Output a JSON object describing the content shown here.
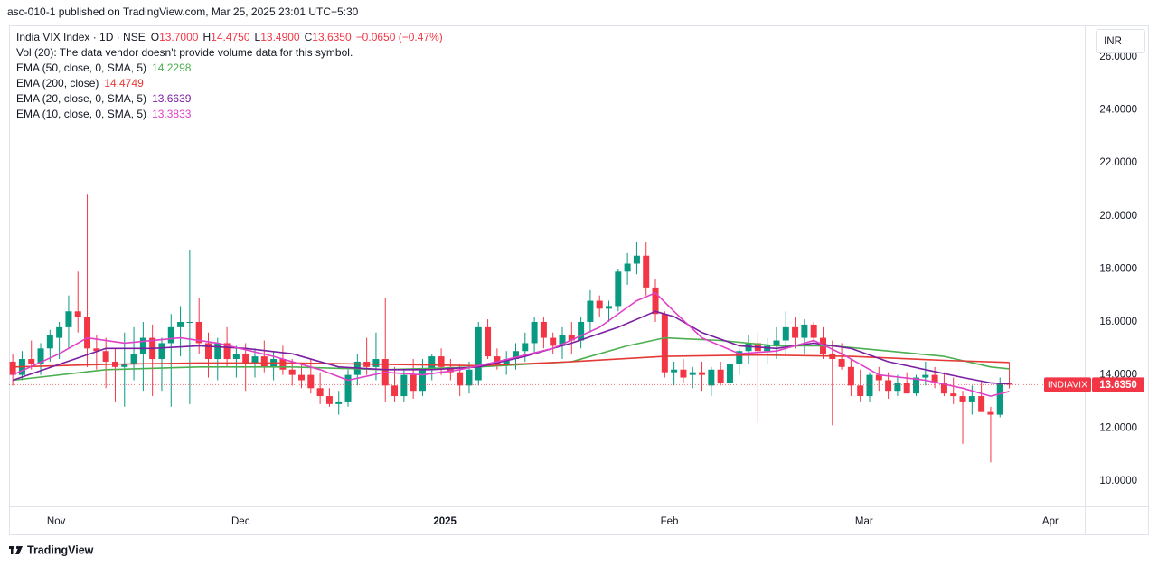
{
  "header": {
    "published": "asc-010-1 published on TradingView.com, Mar 25, 2025 23:01 UTC+5:30",
    "ohlc": [
      {
        "key": "O",
        "text": "13.7000"
      },
      {
        "key": "H",
        "text": "14.4750"
      },
      {
        "key": "L",
        "text": "13.4900"
      },
      {
        "key": "C",
        "text": "13.6350"
      }
    ],
    "change": "−0.0650 (−0.47%)",
    "volume_note": "Vol (20): The data vendor doesn't provide volume data for this symbol."
  },
  "footer": {
    "brand": "TradingView"
  },
  "chart_data": {
    "type": "candlestick",
    "title": "India VIX Index · 1D · NSE",
    "currency": "INR",
    "up_color": "#089981",
    "down_color": "#f23645",
    "grid": false,
    "open": [
      14.5,
      14.0,
      14.6,
      14.4,
      15.0,
      15.4,
      15.8,
      16.4,
      16.2,
      15.0,
      14.9,
      14.5,
      14.3,
      14.4,
      14.8,
      15.4,
      14.6,
      15.2,
      15.8,
      16.0,
      16.0,
      15.2,
      14.6,
      15.2,
      14.6,
      14.8,
      14.4,
      14.7,
      14.3,
      14.6,
      14.2,
      14.0,
      14.0,
      13.5,
      13.2,
      12.9,
      13.0,
      14.0,
      14.5,
      14.3,
      14.6,
      13.6,
      13.2,
      14.0,
      13.4,
      14.2,
      14.7,
      14.3,
      14.1,
      13.6,
      13.8,
      15.8,
      14.7,
      14.4,
      14.6,
      14.9,
      15.2,
      16.0,
      15.4,
      15.1,
      15.5,
      15.3,
      16.0,
      16.8,
      16.5,
      16.6,
      17.9,
      18.2,
      18.5,
      17.3,
      16.3,
      14.1,
      14.2,
      14.0,
      14.1,
      13.6,
      14.2,
      13.7,
      14.4,
      14.9,
      15.2,
      14.9,
      15.1,
      15.3,
      15.8,
      15.4,
      15.9,
      15.4,
      14.8,
      14.6,
      14.3,
      13.6,
      13.2,
      14.0,
      13.8,
      13.4,
      13.7,
      13.3,
      13.9,
      14.0,
      13.7,
      13.3,
      13.2,
      13.0,
      13.2,
      12.6,
      12.5,
      13.7
    ],
    "high": [
      14.8,
      14.9,
      15.3,
      15.2,
      15.7,
      16.0,
      17.0,
      17.9,
      20.8,
      15.5,
      15.4,
      15.0,
      15.6,
      15.8,
      16.0,
      15.9,
      15.4,
      16.3,
      16.6,
      18.7,
      16.9,
      15.6,
      15.4,
      15.8,
      15.1,
      15.2,
      15.0,
      15.3,
      14.9,
      15.1,
      14.6,
      14.4,
      14.6,
      14.1,
      13.5,
      13.4,
      14.2,
      14.8,
      15.4,
      15.6,
      16.9,
      14.3,
      14.2,
      14.6,
      14.6,
      14.8,
      15.0,
      14.6,
      14.4,
      14.5,
      16.0,
      16.1,
      15.0,
      14.9,
      15.2,
      15.6,
      16.2,
      16.2,
      15.6,
      15.8,
      16.0,
      16.2,
      17.2,
      17.0,
      16.8,
      18.0,
      18.6,
      19.0,
      19.0,
      17.6,
      16.4,
      14.5,
      14.6,
      14.3,
      14.5,
      14.3,
      14.5,
      14.7,
      15.0,
      15.5,
      15.6,
      15.4,
      15.8,
      16.4,
      16.2,
      16.1,
      16.0,
      15.8,
      15.3,
      15.2,
      14.6,
      14.2,
      14.1,
      14.3,
      14.1,
      14.0,
      14.1,
      14.0,
      14.5,
      14.3,
      14.1,
      13.9,
      13.4,
      13.6,
      13.8,
      12.8,
      13.9,
      14.475
    ],
    "low": [
      13.6,
      13.8,
      14.2,
      14.0,
      14.5,
      14.6,
      15.0,
      15.6,
      14.3,
      14.2,
      13.5,
      13.0,
      12.8,
      13.8,
      13.4,
      13.2,
      13.4,
      12.8,
      14.7,
      12.9,
      14.8,
      13.9,
      13.8,
      14.3,
      13.9,
      13.4,
      13.9,
      14.1,
      13.8,
      14.0,
      13.6,
      13.5,
      13.3,
      12.9,
      12.8,
      12.5,
      12.8,
      13.6,
      14.0,
      13.8,
      13.0,
      13.0,
      13.0,
      13.1,
      13.2,
      13.8,
      14.0,
      13.8,
      13.2,
      13.3,
      13.6,
      14.6,
      14.2,
      14.0,
      14.2,
      14.5,
      14.8,
      15.0,
      14.8,
      14.6,
      14.8,
      15.0,
      15.6,
      16.2,
      16.0,
      16.4,
      17.4,
      17.8,
      17.0,
      16.0,
      13.9,
      13.6,
      13.7,
      13.5,
      13.4,
      13.2,
      13.6,
      13.4,
      14.0,
      14.4,
      12.2,
      14.4,
      14.6,
      14.8,
      15.0,
      14.8,
      15.2,
      14.6,
      12.1,
      14.2,
      13.2,
      13.0,
      13.0,
      13.4,
      13.1,
      13.2,
      13.3,
      13.2,
      13.6,
      13.5,
      13.2,
      12.9,
      11.4,
      12.5,
      12.6,
      10.7,
      12.4,
      13.49
    ],
    "close": [
      14.0,
      14.6,
      14.4,
      15.0,
      15.5,
      15.8,
      16.4,
      16.2,
      15.0,
      14.9,
      14.5,
      14.3,
      14.4,
      14.8,
      15.4,
      14.6,
      15.2,
      15.8,
      16.0,
      16.0,
      15.2,
      14.6,
      15.2,
      14.6,
      14.8,
      14.4,
      14.7,
      14.3,
      14.6,
      14.2,
      14.0,
      13.8,
      13.5,
      13.2,
      12.9,
      13.0,
      14.0,
      14.5,
      14.3,
      14.6,
      13.6,
      13.2,
      14.0,
      13.4,
      14.2,
      14.7,
      14.3,
      14.1,
      13.6,
      14.2,
      15.8,
      14.7,
      14.4,
      14.6,
      14.9,
      15.2,
      16.0,
      15.4,
      15.1,
      15.5,
      15.3,
      16.0,
      16.8,
      16.5,
      16.6,
      17.9,
      18.2,
      18.5,
      17.3,
      16.3,
      14.1,
      14.2,
      13.9,
      14.1,
      14.0,
      14.2,
      13.7,
      14.4,
      14.9,
      15.2,
      14.9,
      15.1,
      15.3,
      15.8,
      15.4,
      15.9,
      15.4,
      14.8,
      14.6,
      14.3,
      13.6,
      13.2,
      14.0,
      13.8,
      13.4,
      13.7,
      13.3,
      13.9,
      14.0,
      13.7,
      13.3,
      13.2,
      13.0,
      13.2,
      12.6,
      12.5,
      13.7,
      13.635
    ],
    "series": [
      {
        "name": "EMA (50, close, 0, SMA, 5)",
        "color": "#4caf50",
        "last_label": "14.2298",
        "x": [
          0,
          10,
          20,
          30,
          40,
          50,
          60,
          66,
          70,
          76,
          82,
          88,
          94,
          100,
          105,
          107
        ],
        "values": [
          13.8,
          14.2,
          14.3,
          14.3,
          14.2,
          14.3,
          14.5,
          15.1,
          15.4,
          15.3,
          15.1,
          15.1,
          14.9,
          14.7,
          14.3,
          14.23
        ]
      },
      {
        "name": "EMA (200, close)",
        "color": "#e53935",
        "last_label": "14.4749",
        "x": [
          0,
          10,
          20,
          30,
          40,
          50,
          60,
          70,
          80,
          90,
          100,
          107
        ],
        "values": [
          14.3,
          14.4,
          14.45,
          14.45,
          14.4,
          14.35,
          14.5,
          14.7,
          14.75,
          14.7,
          14.55,
          14.47
        ]
      },
      {
        "name": "EMA (20, close, 0, SMA, 5)",
        "color": "#7b1fa2",
        "last_label": "13.6639",
        "x": [
          0,
          5,
          10,
          15,
          20,
          25,
          30,
          35,
          40,
          45,
          50,
          55,
          60,
          65,
          69,
          71,
          74,
          78,
          82,
          86,
          90,
          94,
          98,
          102,
          105,
          107
        ],
        "values": [
          13.8,
          14.4,
          15.0,
          15.0,
          15.1,
          15.0,
          14.8,
          14.3,
          14.2,
          14.2,
          14.3,
          14.7,
          15.2,
          15.8,
          16.4,
          16.2,
          15.6,
          15.1,
          15.0,
          15.2,
          15.0,
          14.5,
          14.2,
          13.9,
          13.7,
          13.66
        ]
      },
      {
        "name": "EMA (10, close, 0, SMA, 5)",
        "color": "#e040c8",
        "last_label": "13.3833",
        "x": [
          0,
          5,
          8,
          12,
          18,
          22,
          28,
          33,
          36,
          40,
          44,
          48,
          52,
          58,
          63,
          67,
          69,
          71,
          74,
          78,
          82,
          86,
          89,
          93,
          98,
          102,
          105,
          107
        ],
        "values": [
          14.0,
          14.8,
          15.4,
          15.2,
          15.4,
          15.2,
          14.7,
          14.2,
          13.8,
          14.1,
          14.0,
          14.2,
          14.5,
          15.0,
          15.8,
          16.8,
          17.1,
          16.4,
          15.4,
          14.8,
          14.9,
          15.3,
          14.8,
          14.0,
          13.8,
          13.5,
          13.2,
          13.38
        ]
      }
    ],
    "last_price": {
      "name": "INDIAVIX",
      "value": 13.635,
      "label": "13.6350",
      "color": "#f23645"
    },
    "ylim": [
      9.04,
      27.19
    ],
    "yticks": [
      {
        "value": 10,
        "label": "10.0000"
      },
      {
        "value": 12,
        "label": "12.0000"
      },
      {
        "value": 14,
        "label": "14.0000"
      },
      {
        "value": 16,
        "label": "16.0000"
      },
      {
        "value": 18,
        "label": "18.0000"
      },
      {
        "value": 20,
        "label": "20.0000"
      },
      {
        "value": 22,
        "label": "22.0000"
      },
      {
        "value": 24,
        "label": "24.0000"
      },
      {
        "value": 26,
        "label": "26.0000"
      }
    ],
    "xlim": [
      -0.4,
      115.1
    ],
    "xticks": [
      {
        "value": 4.66,
        "label": "Nov"
      },
      {
        "value": 24.47,
        "label": "Dec"
      },
      {
        "value": 46.4,
        "label": "2025"
      },
      {
        "value": 70.5,
        "label": "Feb"
      },
      {
        "value": 91.4,
        "label": "Mar"
      },
      {
        "value": 111.4,
        "label": "Apr"
      }
    ]
  }
}
